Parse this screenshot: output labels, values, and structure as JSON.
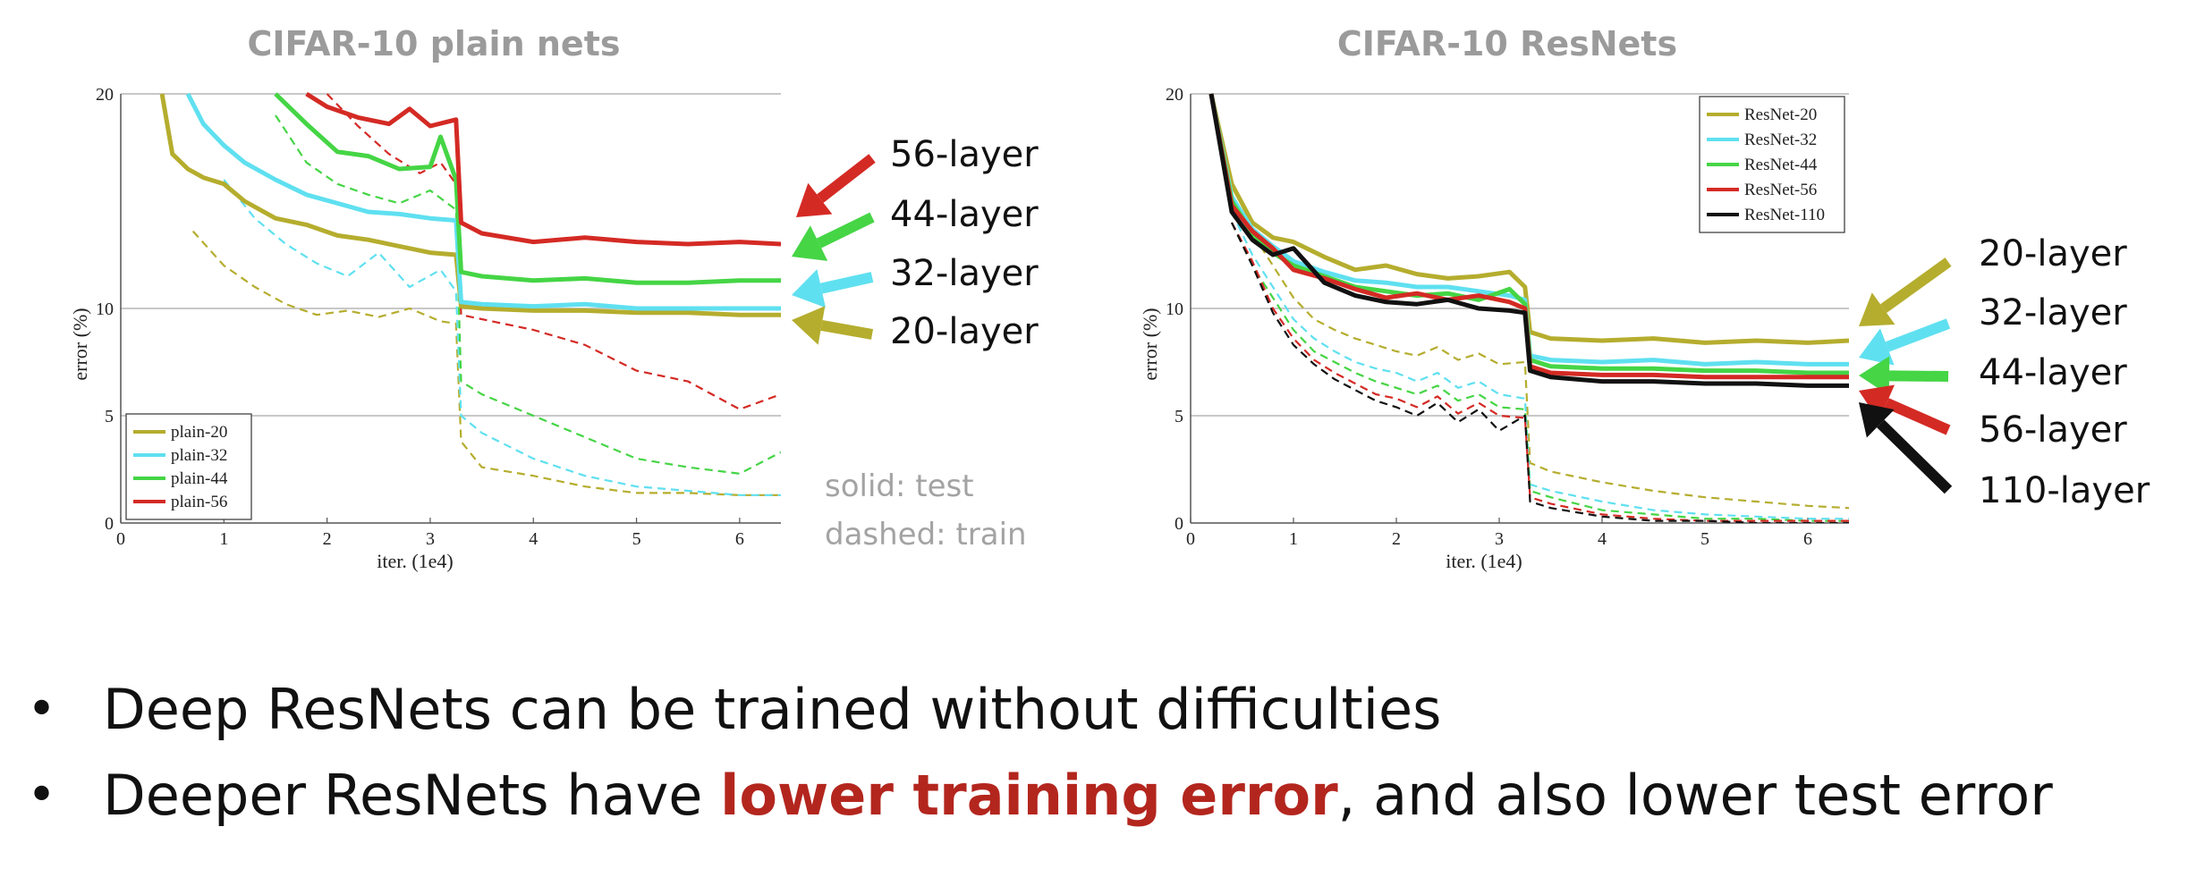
{
  "chart_data": [
    {
      "type": "line",
      "title": "CIFAR-10 plain nets",
      "xlabel": "iter. (1e4)",
      "ylabel": "error (%)",
      "xlim": [
        0,
        6.4
      ],
      "ylim": [
        0,
        20
      ],
      "xticks": [
        0,
        1,
        2,
        3,
        4,
        5,
        6
      ],
      "yticks": [
        0,
        5,
        10,
        20
      ],
      "ytick_labels": [
        "0",
        "5",
        "10",
        "20"
      ],
      "grid": "horizontal at 5, 10, 20",
      "legend_position": "bottom-left",
      "legend": [
        "plain-20",
        "plain-32",
        "plain-44",
        "plain-56"
      ],
      "colors": {
        "plain-20": "#b5ad2e",
        "plain-32": "#5fe0f0",
        "plain-44": "#45d545",
        "plain-56": "#d42a24"
      },
      "series": [
        {
          "name": "plain-20",
          "style": "test",
          "x": [
            0.4,
            0.5,
            0.65,
            0.8,
            1.0,
            1.2,
            1.5,
            1.8,
            2.1,
            2.4,
            2.7,
            3.0,
            3.25,
            3.3,
            3.5,
            4.0,
            4.5,
            5.0,
            5.5,
            6.0,
            6.4
          ],
          "y": [
            20,
            17.2,
            16.5,
            16.1,
            15.8,
            15.0,
            14.2,
            13.9,
            13.4,
            13.2,
            12.9,
            12.6,
            12.5,
            10.1,
            10.0,
            9.9,
            9.9,
            9.8,
            9.8,
            9.7,
            9.7
          ]
        },
        {
          "name": "plain-32",
          "style": "test",
          "x": [
            0.65,
            0.8,
            1.0,
            1.2,
            1.5,
            1.8,
            2.1,
            2.4,
            2.7,
            3.0,
            3.25,
            3.3,
            3.5,
            4.0,
            4.5,
            5.0,
            5.5,
            6.0,
            6.4
          ],
          "y": [
            20,
            18.6,
            17.6,
            16.8,
            16.0,
            15.3,
            14.9,
            14.5,
            14.4,
            14.2,
            14.1,
            10.3,
            10.2,
            10.1,
            10.2,
            10.0,
            10.0,
            10.0,
            10.0
          ]
        },
        {
          "name": "plain-44",
          "style": "test",
          "x": [
            1.5,
            1.8,
            2.1,
            2.4,
            2.7,
            3.0,
            3.1,
            3.25,
            3.3,
            3.5,
            4.0,
            4.5,
            5.0,
            5.5,
            6.0,
            6.4
          ],
          "y": [
            20,
            18.6,
            17.3,
            17.1,
            16.5,
            16.6,
            18.0,
            16.0,
            11.7,
            11.5,
            11.3,
            11.4,
            11.2,
            11.2,
            11.3,
            11.3
          ]
        },
        {
          "name": "plain-56",
          "style": "test",
          "x": [
            1.8,
            2.0,
            2.3,
            2.6,
            2.8,
            3.0,
            3.25,
            3.3,
            3.5,
            4.0,
            4.5,
            5.0,
            5.5,
            6.0,
            6.4
          ],
          "y": [
            20,
            19.4,
            18.9,
            18.6,
            19.3,
            18.5,
            18.8,
            14.0,
            13.5,
            13.1,
            13.3,
            13.1,
            13.0,
            13.1,
            13.0
          ]
        },
        {
          "name": "plain-20",
          "style": "train",
          "x": [
            0.7,
            1.0,
            1.3,
            1.6,
            1.9,
            2.2,
            2.5,
            2.8,
            3.1,
            3.25,
            3.3,
            3.5,
            4.0,
            4.5,
            5.0,
            5.5,
            6.0,
            6.4
          ],
          "y": [
            13.6,
            12.0,
            11.0,
            10.2,
            9.7,
            9.9,
            9.6,
            10.0,
            9.4,
            9.3,
            3.8,
            2.6,
            2.2,
            1.7,
            1.4,
            1.4,
            1.3,
            1.3
          ]
        },
        {
          "name": "plain-32",
          "style": "train",
          "x": [
            1.0,
            1.3,
            1.6,
            1.9,
            2.2,
            2.5,
            2.8,
            3.1,
            3.25,
            3.3,
            3.5,
            4.0,
            4.5,
            5.0,
            5.5,
            6.0,
            6.4
          ],
          "y": [
            16.0,
            14.2,
            13.0,
            12.1,
            11.5,
            12.6,
            11.0,
            11.8,
            10.8,
            5.0,
            4.2,
            3.0,
            2.2,
            1.7,
            1.5,
            1.3,
            1.3
          ]
        },
        {
          "name": "plain-44",
          "style": "train",
          "x": [
            1.5,
            1.8,
            2.1,
            2.4,
            2.7,
            3.0,
            3.25,
            3.3,
            3.5,
            4.0,
            4.5,
            5.0,
            5.5,
            6.0,
            6.4
          ],
          "y": [
            19.0,
            16.8,
            15.8,
            15.3,
            14.9,
            15.5,
            14.6,
            6.6,
            6.0,
            5.0,
            4.0,
            3.0,
            2.6,
            2.3,
            3.3
          ]
        },
        {
          "name": "plain-56",
          "style": "train",
          "x": [
            2.0,
            2.3,
            2.6,
            2.9,
            3.1,
            3.25,
            3.3,
            3.5,
            4.0,
            4.5,
            5.0,
            5.5,
            6.0,
            6.4
          ],
          "y": [
            20,
            18.5,
            17.2,
            16.3,
            16.8,
            15.8,
            9.7,
            9.5,
            9.0,
            8.3,
            7.1,
            6.6,
            5.3,
            6.0
          ]
        }
      ]
    },
    {
      "type": "line",
      "title": "CIFAR-10 ResNets",
      "xlabel": "iter. (1e4)",
      "ylabel": "error (%)",
      "xlim": [
        0,
        6.4
      ],
      "ylim": [
        0,
        20
      ],
      "xticks": [
        0,
        1,
        2,
        3,
        4,
        5,
        6
      ],
      "yticks": [
        0,
        5,
        10,
        20
      ],
      "ytick_labels": [
        "0",
        "5",
        "10",
        "20"
      ],
      "grid": "horizontal at 5, 10, 20",
      "legend_position": "top-right",
      "legend": [
        "ResNet-20",
        "ResNet-32",
        "ResNet-44",
        "ResNet-56",
        "ResNet-110"
      ],
      "colors": {
        "ResNet-20": "#b5ad2e",
        "ResNet-32": "#5fe0f0",
        "ResNet-44": "#45d545",
        "ResNet-56": "#d42a24",
        "ResNet-110": "#111111"
      },
      "series": [
        {
          "name": "ResNet-20",
          "style": "test",
          "x": [
            0.2,
            0.4,
            0.6,
            0.8,
            1.0,
            1.3,
            1.6,
            1.9,
            2.2,
            2.5,
            2.8,
            3.1,
            3.25,
            3.3,
            3.5,
            4.0,
            4.5,
            5.0,
            5.5,
            6.0,
            6.4
          ],
          "y": [
            20,
            15.8,
            14.0,
            13.3,
            13.1,
            12.4,
            11.8,
            12.0,
            11.6,
            11.4,
            11.5,
            11.7,
            11.0,
            8.9,
            8.6,
            8.5,
            8.6,
            8.4,
            8.5,
            8.4,
            8.5
          ]
        },
        {
          "name": "ResNet-32",
          "style": "test",
          "x": [
            0.2,
            0.4,
            0.6,
            0.8,
            1.0,
            1.3,
            1.6,
            1.9,
            2.2,
            2.5,
            2.8,
            3.1,
            3.25,
            3.3,
            3.5,
            4.0,
            4.5,
            5.0,
            5.5,
            6.0,
            6.4
          ],
          "y": [
            20,
            15.2,
            13.7,
            12.9,
            12.2,
            11.7,
            11.3,
            11.2,
            11.0,
            11.0,
            10.8,
            10.6,
            10.4,
            7.8,
            7.6,
            7.5,
            7.6,
            7.4,
            7.5,
            7.4,
            7.4
          ]
        },
        {
          "name": "ResNet-44",
          "style": "test",
          "x": [
            0.2,
            0.4,
            0.6,
            0.8,
            1.0,
            1.3,
            1.6,
            1.9,
            2.2,
            2.5,
            2.8,
            3.1,
            3.25,
            3.3,
            3.5,
            4.0,
            4.5,
            5.0,
            5.5,
            6.0,
            6.4
          ],
          "y": [
            20,
            15.0,
            13.5,
            12.6,
            12.0,
            11.5,
            11.0,
            10.8,
            10.6,
            10.7,
            10.4,
            10.9,
            10.2,
            7.6,
            7.3,
            7.2,
            7.2,
            7.1,
            7.1,
            7.0,
            7.0
          ]
        },
        {
          "name": "ResNet-56",
          "style": "test",
          "x": [
            0.2,
            0.4,
            0.6,
            0.8,
            1.0,
            1.3,
            1.6,
            1.9,
            2.2,
            2.5,
            2.8,
            3.1,
            3.25,
            3.3,
            3.5,
            4.0,
            4.5,
            5.0,
            5.5,
            6.0,
            6.4
          ],
          "y": [
            20,
            14.8,
            13.6,
            12.8,
            11.8,
            11.4,
            10.9,
            10.5,
            10.7,
            10.4,
            10.6,
            10.3,
            10.0,
            7.3,
            7.0,
            6.9,
            6.9,
            6.8,
            6.8,
            6.8,
            6.8
          ]
        },
        {
          "name": "ResNet-110",
          "style": "test",
          "x": [
            0.2,
            0.4,
            0.6,
            0.8,
            1.0,
            1.3,
            1.6,
            1.9,
            2.2,
            2.5,
            2.8,
            3.1,
            3.25,
            3.3,
            3.5,
            4.0,
            4.5,
            5.0,
            5.5,
            6.0,
            6.4
          ],
          "y": [
            20,
            14.5,
            13.2,
            12.5,
            12.8,
            11.2,
            10.6,
            10.3,
            10.2,
            10.4,
            10.0,
            9.9,
            9.8,
            7.1,
            6.8,
            6.6,
            6.6,
            6.5,
            6.5,
            6.4,
            6.4
          ]
        },
        {
          "name": "ResNet-20",
          "style": "train",
          "x": [
            0.4,
            0.6,
            0.8,
            1.0,
            1.2,
            1.4,
            1.6,
            1.8,
            2.0,
            2.2,
            2.4,
            2.6,
            2.8,
            3.0,
            3.25,
            3.3,
            3.5,
            4.0,
            4.5,
            5.0,
            5.5,
            6.0,
            6.4
          ],
          "y": [
            15.0,
            13.5,
            12.0,
            10.5,
            9.5,
            9.0,
            8.6,
            8.3,
            8.0,
            7.8,
            8.2,
            7.6,
            7.9,
            7.4,
            7.5,
            2.8,
            2.4,
            1.9,
            1.5,
            1.2,
            1.0,
            0.8,
            0.7
          ]
        },
        {
          "name": "ResNet-32",
          "style": "train",
          "x": [
            0.4,
            0.6,
            0.8,
            1.0,
            1.2,
            1.4,
            1.6,
            1.8,
            2.0,
            2.2,
            2.4,
            2.6,
            2.8,
            3.0,
            3.25,
            3.3,
            3.5,
            4.0,
            4.5,
            5.0,
            5.5,
            6.0,
            6.4
          ],
          "y": [
            14.5,
            12.5,
            11.0,
            9.5,
            8.6,
            8.0,
            7.5,
            7.2,
            7.0,
            6.6,
            7.0,
            6.3,
            6.6,
            6.0,
            5.8,
            1.8,
            1.5,
            1.0,
            0.6,
            0.4,
            0.3,
            0.2,
            0.2
          ]
        },
        {
          "name": "ResNet-44",
          "style": "train",
          "x": [
            0.4,
            0.6,
            0.8,
            1.0,
            1.2,
            1.4,
            1.6,
            1.8,
            2.0,
            2.2,
            2.4,
            2.6,
            2.8,
            3.0,
            3.25,
            3.3,
            3.5,
            4.0,
            4.5,
            5.0,
            5.5,
            6.0,
            6.4
          ],
          "y": [
            14.0,
            12.0,
            10.5,
            9.0,
            8.0,
            7.5,
            7.0,
            6.6,
            6.3,
            6.0,
            6.4,
            5.7,
            6.0,
            5.4,
            5.3,
            1.5,
            1.2,
            0.6,
            0.4,
            0.2,
            0.2,
            0.1,
            0.1
          ]
        },
        {
          "name": "ResNet-56",
          "style": "train",
          "x": [
            0.4,
            0.6,
            0.8,
            1.0,
            1.2,
            1.4,
            1.6,
            1.8,
            2.0,
            2.2,
            2.4,
            2.6,
            2.8,
            3.0,
            3.25,
            3.3,
            3.5,
            4.0,
            4.5,
            5.0,
            5.5,
            6.0,
            6.4
          ],
          "y": [
            14.0,
            12.2,
            10.0,
            8.6,
            7.6,
            7.0,
            6.5,
            6.0,
            5.8,
            5.4,
            5.9,
            5.1,
            5.6,
            5.0,
            4.9,
            1.2,
            0.9,
            0.4,
            0.2,
            0.1,
            0.1,
            0.1,
            0.1
          ]
        },
        {
          "name": "ResNet-110",
          "style": "train",
          "x": [
            0.4,
            0.6,
            0.8,
            1.0,
            1.2,
            1.4,
            1.6,
            1.8,
            2.0,
            2.2,
            2.4,
            2.6,
            2.8,
            3.0,
            3.25,
            3.3,
            3.5,
            4.0,
            4.5,
            5.0,
            5.5,
            6.0,
            6.4
          ],
          "y": [
            14.0,
            12.0,
            9.8,
            8.3,
            7.4,
            6.7,
            6.2,
            5.7,
            5.4,
            5.0,
            5.6,
            4.7,
            5.3,
            4.3,
            5.0,
            1.0,
            0.7,
            0.3,
            0.1,
            0.1,
            0.0,
            0.0,
            0.0
          ]
        }
      ]
    }
  ],
  "annotations": {
    "plain": [
      {
        "label": "56-layer",
        "color": "#d42a24"
      },
      {
        "label": "44-layer",
        "color": "#45d545"
      },
      {
        "label": "32-layer",
        "color": "#5fe0f0"
      },
      {
        "label": "20-layer",
        "color": "#b5ad2e"
      }
    ],
    "resnet": [
      {
        "label": "20-layer",
        "color": "#b5ad2e"
      },
      {
        "label": "32-layer",
        "color": "#5fe0f0"
      },
      {
        "label": "44-layer",
        "color": "#45d545"
      },
      {
        "label": "56-layer",
        "color": "#d42a24"
      },
      {
        "label": "110-layer",
        "color": "#111111"
      }
    ],
    "style_note_solid": "solid: test",
    "style_note_dashed": "dashed: train"
  },
  "bullets": {
    "b1": "Deep ResNets can be trained without difficulties",
    "b2_pre": "Deeper ResNets have ",
    "b2_emph": "lower training error",
    "b2_post": ", and also lower test error",
    "emph_color": "#b3261e"
  }
}
